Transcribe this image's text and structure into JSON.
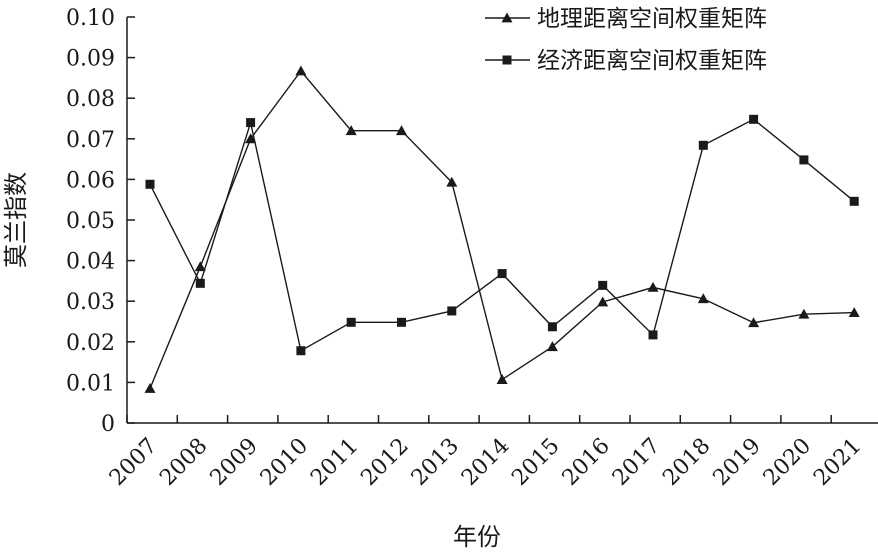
{
  "chart_data": {
    "type": "line",
    "title": "",
    "xlabel": "年份",
    "ylabel": "莫兰指数",
    "ylim": [
      0,
      0.1
    ],
    "y_ticks": [
      "0",
      "0.01",
      "0.02",
      "0.03",
      "0.04",
      "0.05",
      "0.06",
      "0.07",
      "0.08",
      "0.09",
      "0.10"
    ],
    "categories": [
      "2007",
      "2008",
      "2009",
      "2010",
      "2011",
      "2012",
      "2013",
      "2014",
      "2015",
      "2016",
      "2017",
      "2018",
      "2019",
      "2020",
      "2021"
    ],
    "grid": false,
    "legend_position": "top-right",
    "series": [
      {
        "name": "地理距离空间权重矩阵",
        "marker": "triangle",
        "color": "#1a1a1a",
        "values": [
          0.0085,
          0.0385,
          0.07,
          0.0867,
          0.072,
          0.072,
          0.0593,
          0.0107,
          0.0188,
          0.0298,
          0.0334,
          0.0306,
          0.0247,
          0.0268,
          0.0272
        ]
      },
      {
        "name": "经济距离空间权重矩阵",
        "marker": "square",
        "color": "#1a1a1a",
        "values": [
          0.0588,
          0.0344,
          0.074,
          0.0178,
          0.0248,
          0.0248,
          0.0276,
          0.0368,
          0.0237,
          0.0339,
          0.0217,
          0.0684,
          0.0748,
          0.0648,
          0.0546
        ]
      }
    ]
  }
}
